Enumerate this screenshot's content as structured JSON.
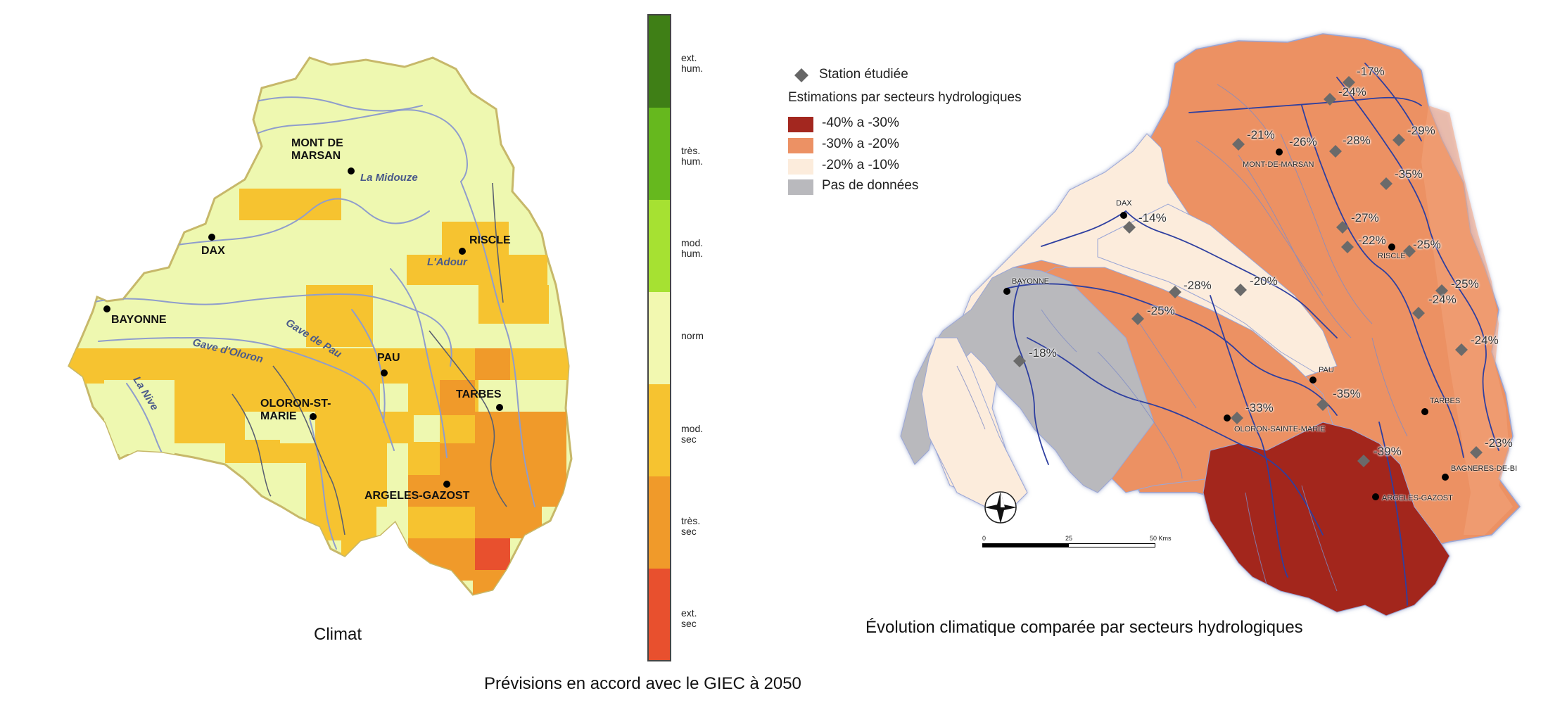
{
  "captions": {
    "left": "Climat",
    "right": "Évolution climatique comparée par secteurs hydrologiques",
    "bottom": "Prévisions en accord avec le GIEC à 2050"
  },
  "scale": {
    "labels": [
      "ext.\nhum.",
      "très.\nhum.",
      "mod.\nhum.",
      "norm",
      "mod.\nsec",
      "très.\nsec",
      "ext.\nsec"
    ],
    "colors": [
      "#3f7f16",
      "#66b81e",
      "#a6e132",
      "#f2f8b0",
      "#f6c330",
      "#f09a2a",
      "#e8502e"
    ]
  },
  "left_map": {
    "cities": [
      {
        "name": "MONT DE\nMARSAN"
      },
      {
        "name": "DAX"
      },
      {
        "name": "RISCLE"
      },
      {
        "name": "BAYONNE"
      },
      {
        "name": "PAU"
      },
      {
        "name": "TARBES"
      },
      {
        "name": "OLORON-ST-\nMARIE"
      },
      {
        "name": "ARGELES-GAZOST"
      }
    ],
    "rivers": [
      {
        "name": "La Midouze"
      },
      {
        "name": "L'Adour"
      },
      {
        "name": "Gave de Pau"
      },
      {
        "name": "Gave d'Oloron"
      },
      {
        "name": "La Nive"
      }
    ]
  },
  "legend": {
    "station_label": "Station étudiée",
    "section_title": "Estimations par secteurs hydrologiques",
    "items": [
      {
        "label": "-40% a -30%",
        "color": "#a3271f"
      },
      {
        "label": "-30% a -20%",
        "color": "#ec9164"
      },
      {
        "label": "-20% a -10%",
        "color": "#fcecdc"
      },
      {
        "label": "Pas de données",
        "color": "#b9b9bd"
      }
    ]
  },
  "right_map": {
    "percentages": [
      "-17%",
      "-24%",
      "-21%",
      "-26%",
      "-28%",
      "-29%",
      "-35%",
      "-14%",
      "-27%",
      "-22%",
      "-25%",
      "-20%",
      "-28%",
      "-25%",
      "-24%",
      "-25%",
      "-24%",
      "-18%",
      "-33%",
      "-35%",
      "-39%",
      "-23%"
    ],
    "cities": [
      "MONT-DE-MARSAN",
      "DAX",
      "RISCLE",
      "BAYONNE",
      "PAU",
      "OLORON-SAINTE-MARIE",
      "TARBES",
      "ARGELES-GAZOST",
      "BAGNERES-DE-BI"
    ],
    "scale_bar": {
      "ticks": [
        "0",
        "25",
        "50 Kms"
      ]
    }
  }
}
